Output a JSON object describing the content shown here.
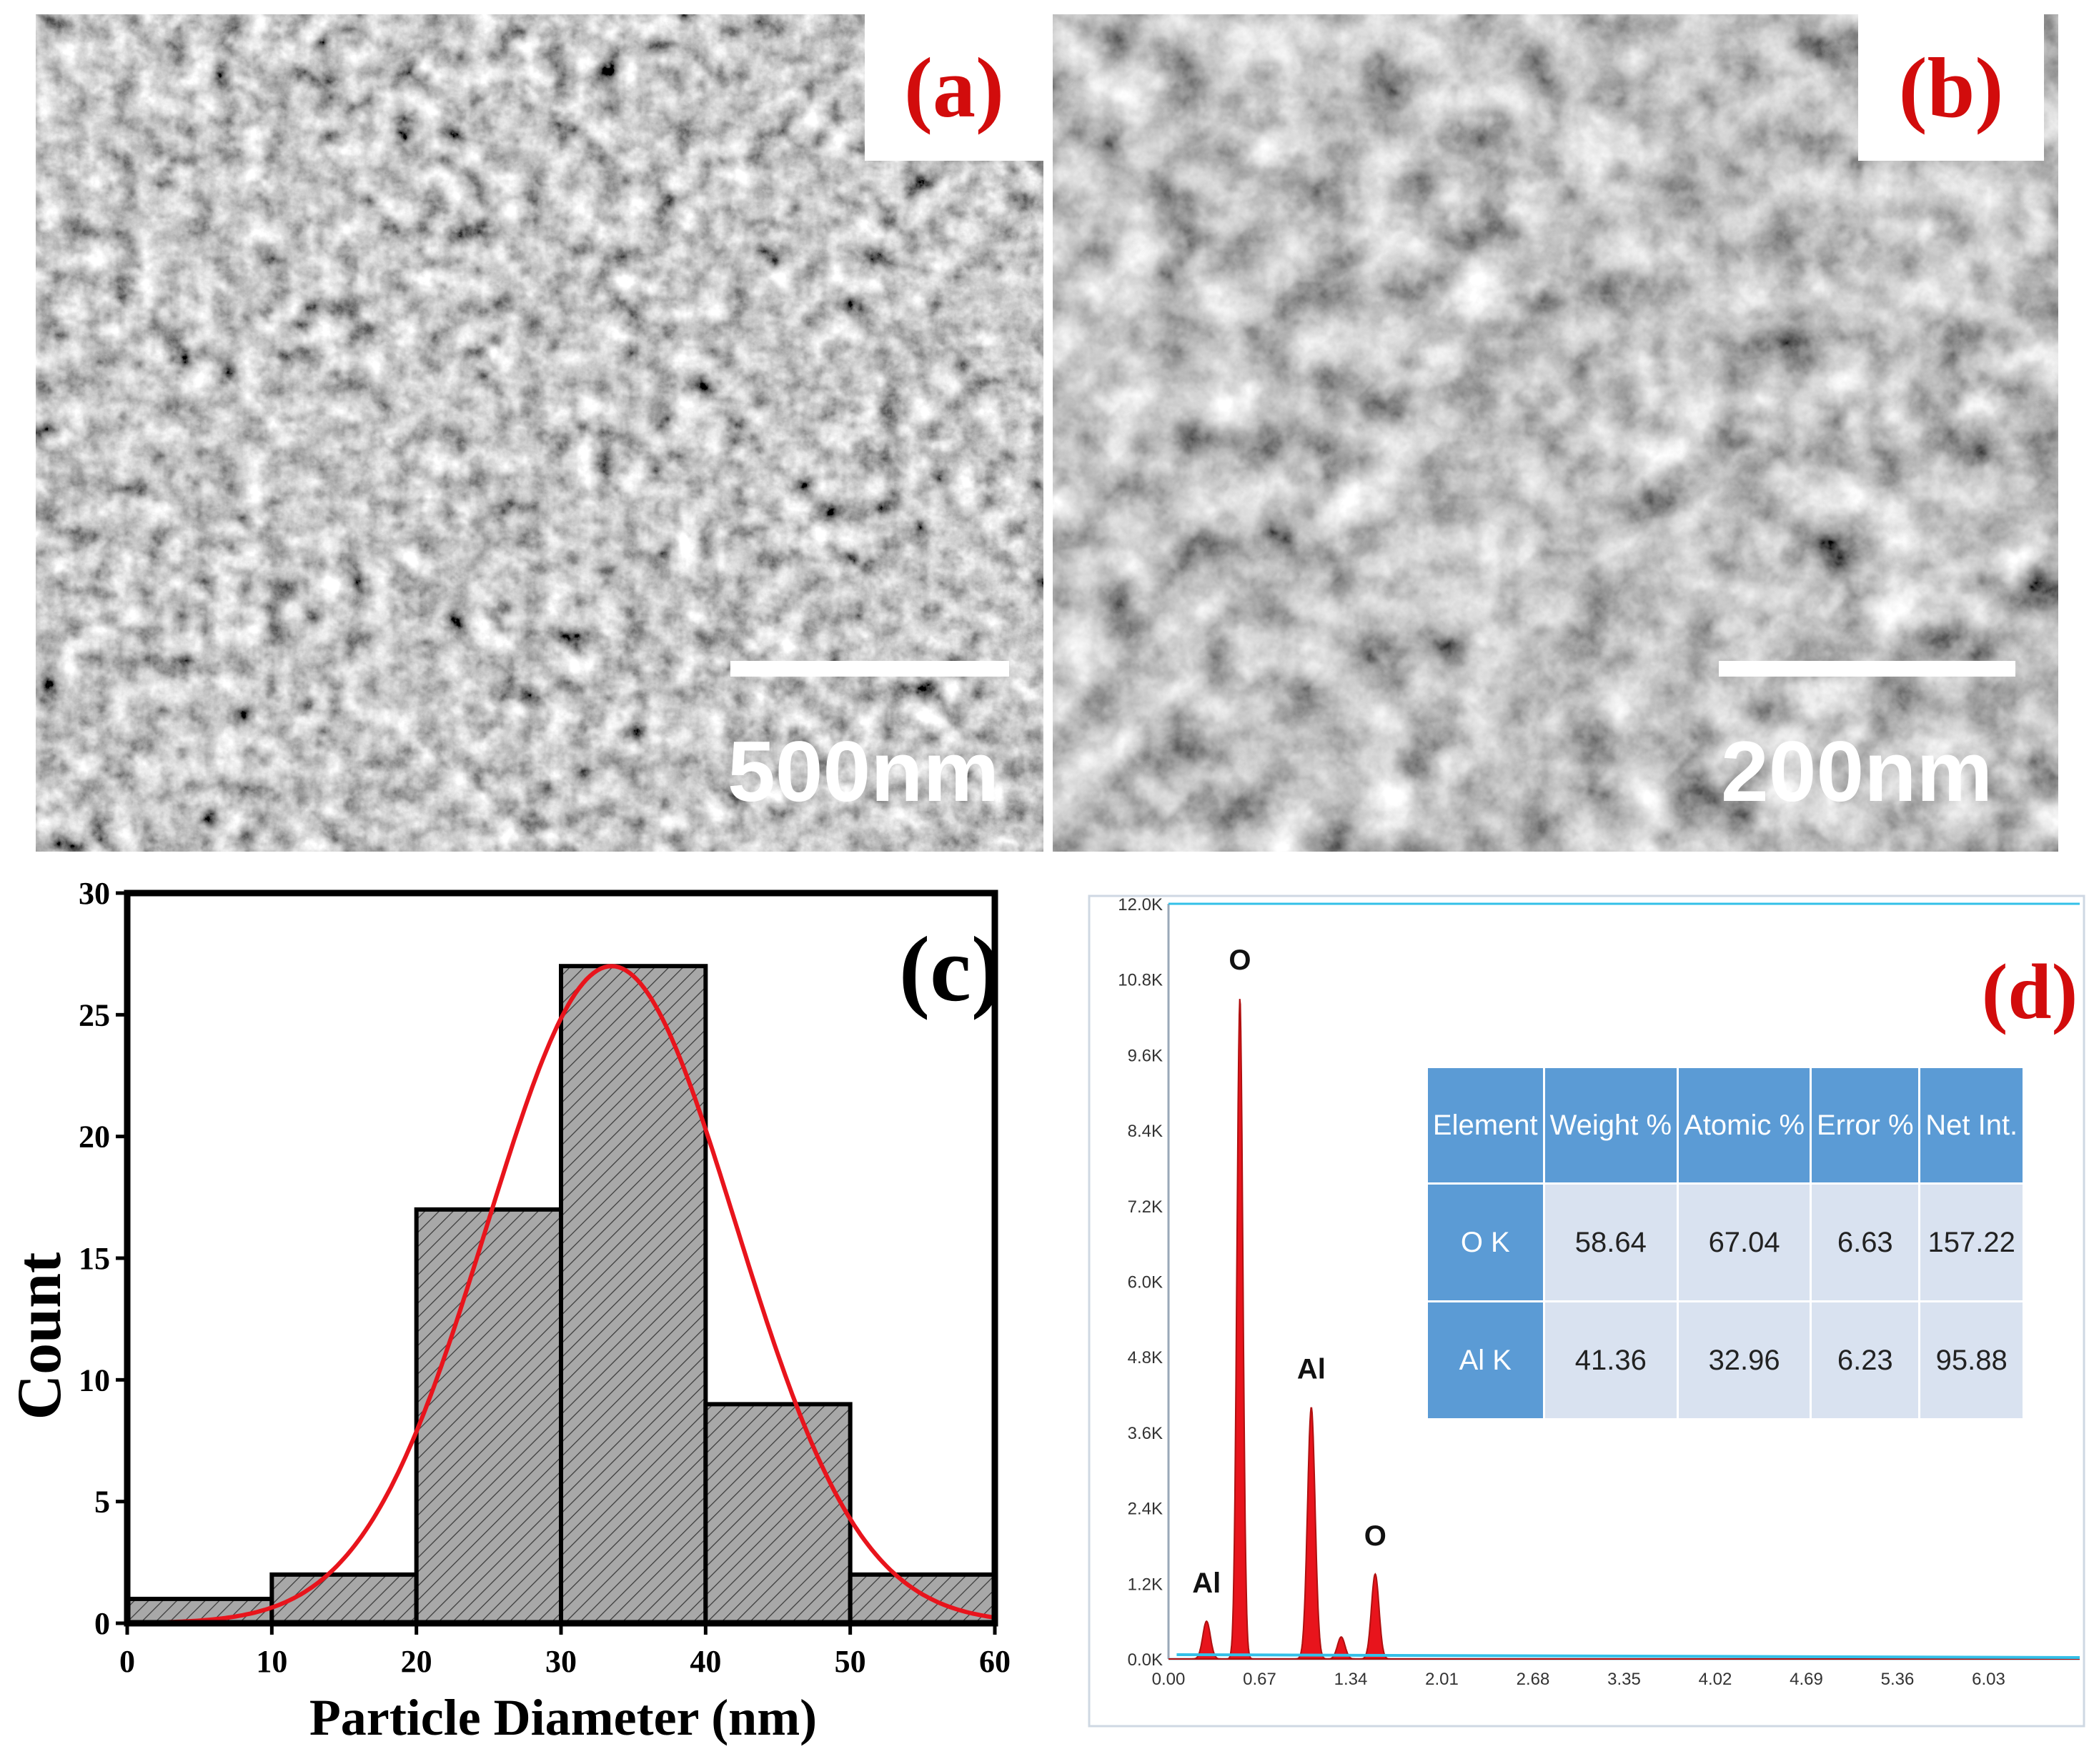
{
  "panels": {
    "a": {
      "label": "(a)",
      "scale_text": "500nm"
    },
    "b": {
      "label": "(b)",
      "scale_text": "200nm"
    }
  },
  "histogram": {
    "label": "(c)",
    "xlabel": "Particle Diameter (nm)",
    "ylabel": "Count",
    "x_ticks": [
      "0",
      "10",
      "20",
      "30",
      "40",
      "50",
      "60"
    ],
    "y_ticks": [
      "0",
      "5",
      "10",
      "15",
      "20",
      "25",
      "30"
    ]
  },
  "eds": {
    "label": "(d)",
    "y_ticks": [
      "0.0K",
      "1.2K",
      "2.4K",
      "3.6K",
      "4.8K",
      "6.0K",
      "7.2K",
      "8.4K",
      "9.6K",
      "10.8K",
      "12.0K"
    ],
    "x_ticks": [
      "0.00",
      "0.67",
      "1.34",
      "2.01",
      "2.68",
      "3.35",
      "4.02",
      "4.69",
      "5.36",
      "6.03"
    ],
    "peak_labels": [
      "O",
      "Al",
      "Al",
      "O"
    ],
    "table": {
      "headers": [
        "Element",
        "Weight %",
        "Atomic %",
        "Error %",
        "Net Int."
      ],
      "rows": [
        [
          "O K",
          "58.64",
          "67.04",
          "6.63",
          "157.22"
        ],
        [
          "Al K",
          "41.36",
          "32.96",
          "6.23",
          "95.88"
        ]
      ]
    }
  },
  "chart_data": [
    {
      "type": "bar",
      "title": "(c)",
      "xlabel": "Particle Diameter (nm)",
      "ylabel": "Count",
      "bin_edges": [
        0,
        10,
        20,
        30,
        40,
        50,
        60
      ],
      "values": [
        1,
        2,
        17,
        27,
        9,
        2
      ],
      "fit": {
        "kind": "gaussian",
        "mean": 33.5,
        "sigma": 8.6,
        "peak": 27,
        "color": "#e8141c"
      },
      "xlim": [
        0,
        60
      ],
      "ylim": [
        0,
        30
      ],
      "bar_fill": "#a8a8a8",
      "bar_pattern": "diagonal hatch"
    },
    {
      "type": "line",
      "title": "(d)",
      "xlim": [
        0,
        6.7
      ],
      "ylim": [
        0,
        12000
      ],
      "peaks": [
        {
          "x": 0.28,
          "y": 600,
          "label": "Al"
        },
        {
          "x": 0.525,
          "y": 10500,
          "label": "O"
        },
        {
          "x": 1.05,
          "y": 4000,
          "label": "Al"
        },
        {
          "x": 1.27,
          "y": 350,
          "label": ""
        },
        {
          "x": 1.52,
          "y": 1350,
          "label": "O"
        }
      ],
      "series_color": "#e8141c",
      "line_color": "#33c0e8"
    }
  ]
}
